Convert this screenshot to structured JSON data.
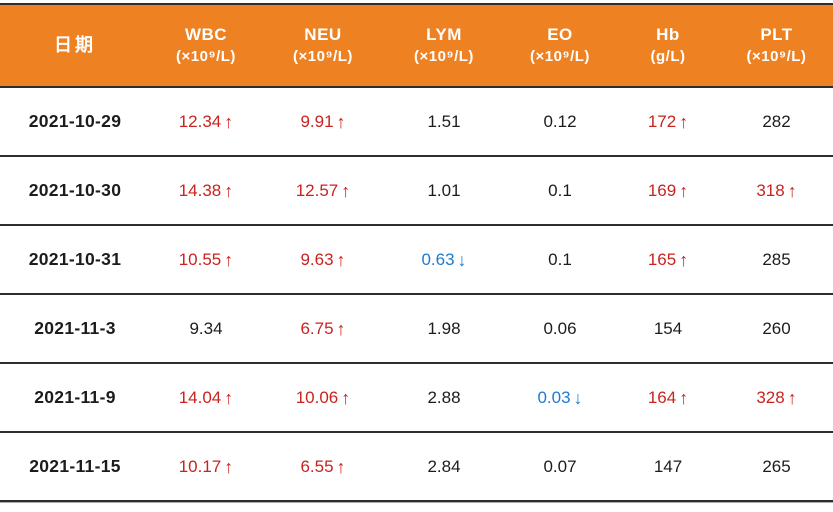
{
  "colors": {
    "header_bg": "#EE8122",
    "high": "#C9231F",
    "low": "#1E7BD0",
    "text": "#1C1C1C",
    "table_border": "#2D2D2D"
  },
  "arrows": {
    "up": "↑",
    "down": "↓"
  },
  "table": {
    "columns": [
      {
        "key": "date",
        "label": "日期",
        "unit": ""
      },
      {
        "key": "wbc",
        "label": "WBC",
        "unit": "(×10⁹/L)"
      },
      {
        "key": "neu",
        "label": "NEU",
        "unit": "(×10⁹/L)"
      },
      {
        "key": "lym",
        "label": "LYM",
        "unit": "(×10⁹/L)"
      },
      {
        "key": "eo",
        "label": "EO",
        "unit": "(×10⁹/L)"
      },
      {
        "key": "hb",
        "label": "Hb",
        "unit": "(g/L)"
      },
      {
        "key": "plt",
        "label": "PLT",
        "unit": "(×10⁹/L)"
      }
    ],
    "rows": [
      {
        "date": "2021-10-29",
        "cells": [
          {
            "v": "12.34",
            "flag": "up"
          },
          {
            "v": "9.91",
            "flag": "up"
          },
          {
            "v": "1.51",
            "flag": ""
          },
          {
            "v": "0.12",
            "flag": ""
          },
          {
            "v": "172",
            "flag": "up"
          },
          {
            "v": "282",
            "flag": ""
          }
        ]
      },
      {
        "date": "2021-10-30",
        "cells": [
          {
            "v": "14.38",
            "flag": "up"
          },
          {
            "v": "12.57",
            "flag": "up"
          },
          {
            "v": "1.01",
            "flag": ""
          },
          {
            "v": "0.1",
            "flag": ""
          },
          {
            "v": "169",
            "flag": "up"
          },
          {
            "v": "318",
            "flag": "up"
          }
        ]
      },
      {
        "date": "2021-10-31",
        "cells": [
          {
            "v": "10.55",
            "flag": "up"
          },
          {
            "v": "9.63",
            "flag": "up"
          },
          {
            "v": "0.63",
            "flag": "down"
          },
          {
            "v": "0.1",
            "flag": ""
          },
          {
            "v": "165",
            "flag": "up"
          },
          {
            "v": "285",
            "flag": ""
          }
        ]
      },
      {
        "date": "2021-11-3",
        "cells": [
          {
            "v": "9.34",
            "flag": ""
          },
          {
            "v": "6.75",
            "flag": "up"
          },
          {
            "v": "1.98",
            "flag": ""
          },
          {
            "v": "0.06",
            "flag": ""
          },
          {
            "v": "154",
            "flag": ""
          },
          {
            "v": "260",
            "flag": ""
          }
        ]
      },
      {
        "date": "2021-11-9",
        "cells": [
          {
            "v": "14.04",
            "flag": "up"
          },
          {
            "v": "10.06",
            "flag": "up"
          },
          {
            "v": "2.88",
            "flag": ""
          },
          {
            "v": "0.03",
            "flag": "down"
          },
          {
            "v": "164",
            "flag": "up"
          },
          {
            "v": "328",
            "flag": "up"
          }
        ]
      },
      {
        "date": "2021-11-15",
        "cells": [
          {
            "v": "10.17",
            "flag": "up"
          },
          {
            "v": "6.55",
            "flag": "up"
          },
          {
            "v": "2.84",
            "flag": ""
          },
          {
            "v": "0.07",
            "flag": ""
          },
          {
            "v": "147",
            "flag": ""
          },
          {
            "v": "265",
            "flag": ""
          }
        ]
      }
    ]
  }
}
